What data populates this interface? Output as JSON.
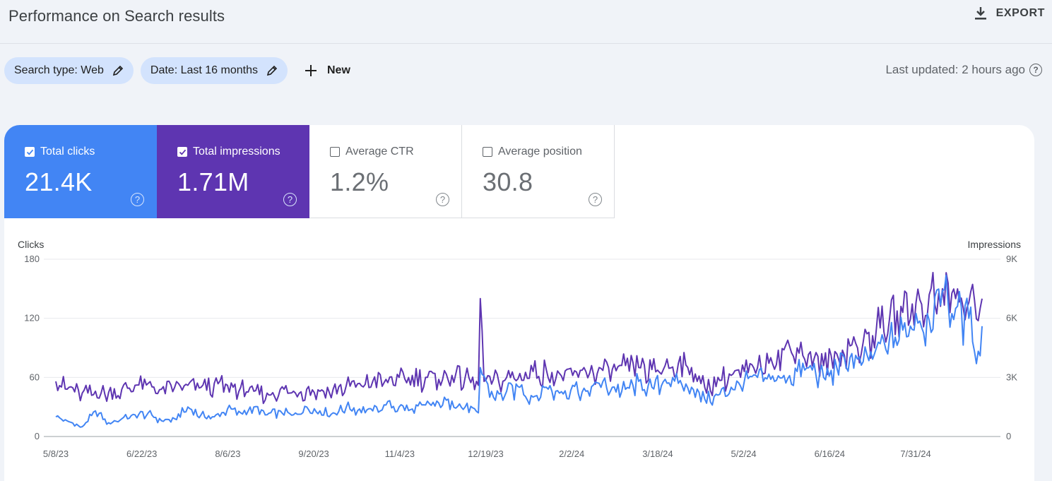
{
  "header": {
    "title": "Performance on Search results",
    "export_label": "EXPORT",
    "export_icon": "download-icon"
  },
  "filters": [
    {
      "label": "Search type: Web",
      "icon": "edit-pencil-icon"
    },
    {
      "label": "Date: Last 16 months",
      "icon": "edit-pencil-icon"
    }
  ],
  "new_button": {
    "label": "New",
    "icon": "plus-icon"
  },
  "last_updated": "Last updated: 2 hours ago",
  "metrics": [
    {
      "label": "Total clicks",
      "value": "21.4K",
      "checked": true,
      "color": "#4285f4"
    },
    {
      "label": "Total impressions",
      "value": "1.71M",
      "checked": true,
      "color": "#5e35b1"
    },
    {
      "label": "Average CTR",
      "value": "1.2%",
      "checked": false
    },
    {
      "label": "Average position",
      "value": "30.8",
      "checked": false
    }
  ],
  "chart_data": {
    "type": "line",
    "left_axis": {
      "title": "Clicks",
      "ticks": [
        "180",
        "120",
        "60",
        "0"
      ],
      "range": [
        0,
        180
      ]
    },
    "right_axis": {
      "title": "Impressions",
      "ticks": [
        "9K",
        "6K",
        "3K",
        "0"
      ],
      "range": [
        0,
        9000
      ]
    },
    "x_ticks": [
      "5/8/23",
      "6/22/23",
      "8/6/23",
      "9/20/23",
      "11/4/23",
      "12/19/23",
      "2/2/24",
      "3/18/24",
      "5/2/24",
      "6/16/24",
      "7/31/24"
    ],
    "grid": true,
    "series": [
      {
        "name": "Total clicks",
        "color": "#4285f4",
        "axis": "left",
        "points": [
          [
            0,
            20
          ],
          [
            14,
            10
          ],
          [
            21,
            26
          ],
          [
            28,
            14
          ],
          [
            35,
            18
          ],
          [
            42,
            22
          ],
          [
            49,
            24
          ],
          [
            56,
            16
          ],
          [
            63,
            18
          ],
          [
            70,
            30
          ],
          [
            77,
            22
          ],
          [
            84,
            20
          ],
          [
            91,
            28
          ],
          [
            98,
            24
          ],
          [
            105,
            30
          ],
          [
            112,
            22
          ],
          [
            119,
            26
          ],
          [
            126,
            22
          ],
          [
            133,
            30
          ],
          [
            140,
            26
          ],
          [
            147,
            24
          ],
          [
            154,
            30
          ],
          [
            161,
            28
          ],
          [
            168,
            26
          ],
          [
            175,
            32
          ],
          [
            182,
            30
          ],
          [
            189,
            28
          ],
          [
            196,
            32
          ],
          [
            203,
            34
          ],
          [
            210,
            36
          ],
          [
            217,
            30
          ],
          [
            224,
            24
          ],
          [
            225,
            70
          ],
          [
            232,
            40
          ],
          [
            239,
            46
          ],
          [
            246,
            50
          ],
          [
            253,
            40
          ],
          [
            260,
            50
          ],
          [
            267,
            44
          ],
          [
            274,
            52
          ],
          [
            281,
            46
          ],
          [
            288,
            54
          ],
          [
            295,
            50
          ],
          [
            302,
            48
          ],
          [
            309,
            56
          ],
          [
            316,
            50
          ],
          [
            323,
            58
          ],
          [
            330,
            54
          ],
          [
            337,
            50
          ],
          [
            344,
            38
          ],
          [
            351,
            42
          ],
          [
            358,
            50
          ],
          [
            365,
            56
          ],
          [
            372,
            60
          ],
          [
            379,
            58
          ],
          [
            386,
            62
          ],
          [
            393,
            66
          ],
          [
            400,
            72
          ],
          [
            407,
            60
          ],
          [
            414,
            70
          ],
          [
            421,
            80
          ],
          [
            428,
            76
          ],
          [
            435,
            90
          ],
          [
            442,
            100
          ],
          [
            449,
            108
          ],
          [
            456,
            125
          ],
          [
            463,
            118
          ],
          [
            470,
            148
          ],
          [
            477,
            130
          ],
          [
            484,
            120
          ],
          [
            490,
            82
          ],
          [
            491,
            112
          ]
        ]
      },
      {
        "name": "Total impressions",
        "color": "#5e35b1",
        "axis": "right",
        "points": [
          [
            0,
            2800
          ],
          [
            7,
            2500
          ],
          [
            14,
            2200
          ],
          [
            21,
            2300
          ],
          [
            28,
            2250
          ],
          [
            35,
            2400
          ],
          [
            42,
            2600
          ],
          [
            49,
            2700
          ],
          [
            56,
            2400
          ],
          [
            63,
            2500
          ],
          [
            70,
            2600
          ],
          [
            77,
            2500
          ],
          [
            84,
            2700
          ],
          [
            91,
            2600
          ],
          [
            98,
            2500
          ],
          [
            105,
            2300
          ],
          [
            112,
            2200
          ],
          [
            119,
            2400
          ],
          [
            126,
            2300
          ],
          [
            133,
            2400
          ],
          [
            140,
            2300
          ],
          [
            147,
            2400
          ],
          [
            154,
            2600
          ],
          [
            161,
            2700
          ],
          [
            168,
            2800
          ],
          [
            175,
            2900
          ],
          [
            182,
            3000
          ],
          [
            189,
            3100
          ],
          [
            196,
            3000
          ],
          [
            203,
            2900
          ],
          [
            210,
            3100
          ],
          [
            217,
            3000
          ],
          [
            224,
            2600
          ],
          [
            225,
            7000
          ],
          [
            227,
            2800
          ],
          [
            232,
            2900
          ],
          [
            239,
            3000
          ],
          [
            246,
            3200
          ],
          [
            253,
            3300
          ],
          [
            260,
            3400
          ],
          [
            267,
            3200
          ],
          [
            274,
            3100
          ],
          [
            281,
            3300
          ],
          [
            288,
            3500
          ],
          [
            295,
            3400
          ],
          [
            302,
            3600
          ],
          [
            309,
            3500
          ],
          [
            316,
            3400
          ],
          [
            323,
            3600
          ],
          [
            330,
            3700
          ],
          [
            337,
            3500
          ],
          [
            344,
            2500
          ],
          [
            351,
            3000
          ],
          [
            358,
            3100
          ],
          [
            365,
            3300
          ],
          [
            372,
            3500
          ],
          [
            379,
            4000
          ],
          [
            386,
            4400
          ],
          [
            393,
            4500
          ],
          [
            400,
            4300
          ],
          [
            407,
            3600
          ],
          [
            414,
            4200
          ],
          [
            421,
            4600
          ],
          [
            428,
            4800
          ],
          [
            435,
            5500
          ],
          [
            442,
            6000
          ],
          [
            449,
            6300
          ],
          [
            456,
            6800
          ],
          [
            463,
            7200
          ],
          [
            470,
            7500
          ],
          [
            477,
            7000
          ],
          [
            484,
            6800
          ],
          [
            490,
            6500
          ],
          [
            491,
            7000
          ]
        ]
      }
    ]
  }
}
